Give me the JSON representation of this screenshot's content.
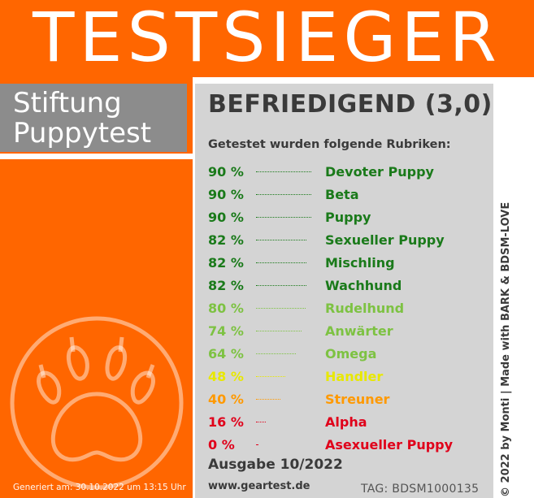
{
  "banner": {
    "title": "TESTSIEGER"
  },
  "brand": {
    "line1": "Stiftung",
    "line2": "Puppytest"
  },
  "rating": "BEFRIEDIGEND (3,0)",
  "subheading": "Getestet wurden folgende Rubriken:",
  "colors": {
    "orange": "#ff6600",
    "panel_gray": "#d4d4d4",
    "dark_green": "#1a7a1a",
    "light_green": "#7dc242",
    "yellow": "#e8e800",
    "amber": "#ff9900",
    "red": "#e0001a"
  },
  "rubriken": [
    {
      "percent": "90 %",
      "value": 90,
      "name": "Devoter Puppy",
      "color": "#1a7a1a"
    },
    {
      "percent": "90 %",
      "value": 90,
      "name": "Beta",
      "color": "#1a7a1a"
    },
    {
      "percent": "90 %",
      "value": 90,
      "name": "Puppy",
      "color": "#1a7a1a"
    },
    {
      "percent": "82 %",
      "value": 82,
      "name": "Sexueller Puppy",
      "color": "#1a7a1a"
    },
    {
      "percent": "82 %",
      "value": 82,
      "name": "Mischling",
      "color": "#1a7a1a"
    },
    {
      "percent": "82 %",
      "value": 82,
      "name": "Wachhund",
      "color": "#1a7a1a"
    },
    {
      "percent": "80 %",
      "value": 80,
      "name": "Rudelhund",
      "color": "#7dc242"
    },
    {
      "percent": "74 %",
      "value": 74,
      "name": "Anwärter",
      "color": "#7dc242"
    },
    {
      "percent": "64 %",
      "value": 64,
      "name": "Omega",
      "color": "#7dc242"
    },
    {
      "percent": "48 %",
      "value": 48,
      "name": "Handler",
      "color": "#e8e800"
    },
    {
      "percent": "40 %",
      "value": 40,
      "name": "Streuner",
      "color": "#ff9900"
    },
    {
      "percent": "16 %",
      "value": 16,
      "name": "Alpha",
      "color": "#e0001a"
    },
    {
      "percent": "0 %",
      "value": 0,
      "name": "Asexueller Puppy",
      "color": "#e0001a"
    }
  ],
  "issue": "Ausgabe 10/2022",
  "website": "www.geartest.de",
  "tag": "TAG: BDSM1000135",
  "generated": "Generiert am: 30.10.2022 um 13:15 Uhr",
  "copyright": "© 2022 by Monti | Made with BARK & BDSM-LOVE",
  "icons": {
    "seal": "paw-icon"
  }
}
